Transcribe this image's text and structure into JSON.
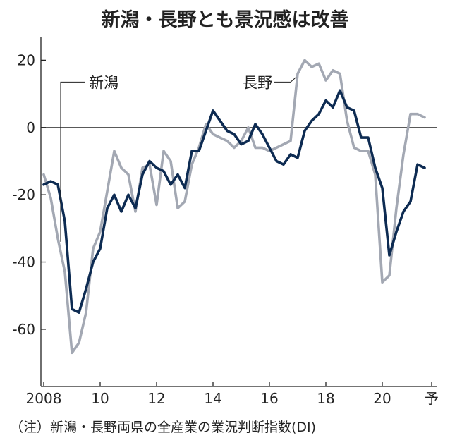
{
  "chart_data": {
    "type": "line",
    "title": "新潟・長野とも景況感は改善",
    "note": "（注）新潟・長野両県の全産業の業況判断指数(DI)",
    "xlabel": "",
    "ylabel": "",
    "x_ticks": [
      {
        "x": 2008,
        "label": "2008"
      },
      {
        "x": 2010,
        "label": "10"
      },
      {
        "x": 2012,
        "label": "12"
      },
      {
        "x": 2014,
        "label": "14"
      },
      {
        "x": 2016,
        "label": "16"
      },
      {
        "x": 2018,
        "label": "18"
      },
      {
        "x": 2020,
        "label": "20"
      },
      {
        "x": 2021.75,
        "label": "予"
      }
    ],
    "y_ticks": [
      {
        "y": 20,
        "label": "20"
      },
      {
        "y": 0,
        "label": "0"
      },
      {
        "y": -20,
        "label": "-20"
      },
      {
        "y": -40,
        "label": "-40"
      },
      {
        "y": -60,
        "label": "-60"
      }
    ],
    "xlim": [
      2007.9,
      2021.95
    ],
    "ylim": [
      -77,
      27
    ],
    "grid": false,
    "series": [
      {
        "name": "新潟",
        "color": "#0d2b52",
        "label_anchor": {
          "x": 2008.6,
          "y": 13.5
        },
        "label_pos": {
          "x": 2010.0,
          "y": 13.5
        },
        "x": [
          2008.0,
          2008.25,
          2008.5,
          2008.75,
          2009.0,
          2009.25,
          2009.5,
          2009.75,
          2010.0,
          2010.25,
          2010.5,
          2010.75,
          2011.0,
          2011.25,
          2011.5,
          2011.75,
          2012.0,
          2012.25,
          2012.5,
          2012.75,
          2013.0,
          2013.25,
          2013.5,
          2013.75,
          2014.0,
          2014.25,
          2014.5,
          2014.75,
          2015.0,
          2015.25,
          2015.5,
          2015.75,
          2016.0,
          2016.25,
          2016.5,
          2016.75,
          2017.0,
          2017.25,
          2017.5,
          2017.75,
          2018.0,
          2018.25,
          2018.5,
          2018.75,
          2019.0,
          2019.25,
          2019.5,
          2019.75,
          2020.0,
          2020.25,
          2020.5,
          2020.75,
          2021.0,
          2021.25,
          2021.5
        ],
        "y": [
          -17,
          -16,
          -17,
          -28,
          -54,
          -55,
          -48,
          -40,
          -36,
          -24,
          -20,
          -25,
          -20,
          -24,
          -14,
          -10,
          -12,
          -13,
          -17,
          -14,
          -18,
          -7,
          -7,
          -1,
          5,
          2,
          -1,
          -2,
          -5,
          -4,
          1,
          -2,
          -6,
          -10,
          -11,
          -8,
          -9,
          -1,
          2,
          4,
          8,
          6,
          11,
          6,
          5,
          -3,
          -3,
          -12,
          -18,
          -38,
          -31,
          -25,
          -22,
          -11,
          -12
        ]
      },
      {
        "name": "長野",
        "color": "#a3a8b3",
        "label_anchor": {
          "x": 2016.5,
          "y": 14
        },
        "label_pos": {
          "x": 2015.2,
          "y": 13.5
        },
        "x": [
          2008.0,
          2008.25,
          2008.5,
          2008.75,
          2009.0,
          2009.25,
          2009.5,
          2009.75,
          2010.0,
          2010.25,
          2010.5,
          2010.75,
          2011.0,
          2011.25,
          2011.5,
          2011.75,
          2012.0,
          2012.25,
          2012.5,
          2012.75,
          2013.0,
          2013.25,
          2013.5,
          2013.75,
          2014.0,
          2014.25,
          2014.5,
          2014.75,
          2015.0,
          2015.25,
          2015.5,
          2015.75,
          2016.0,
          2016.25,
          2016.5,
          2016.75,
          2017.0,
          2017.25,
          2017.5,
          2017.75,
          2018.0,
          2018.25,
          2018.5,
          2018.75,
          2019.0,
          2019.25,
          2019.5,
          2019.75,
          2020.0,
          2020.25,
          2020.5,
          2020.75,
          2021.0,
          2021.25,
          2021.5
        ],
        "y": [
          -14,
          -21,
          -33,
          -43,
          -67,
          -64,
          -55,
          -36,
          -31,
          -19,
          -7,
          -12,
          -14,
          -25,
          -12,
          -11,
          -23,
          -7,
          -10,
          -24,
          -22,
          -11,
          -6,
          1,
          -2,
          -3,
          -4,
          -6,
          -4,
          0,
          -6,
          -6,
          -7,
          -6,
          -5,
          -4,
          16,
          20,
          18,
          19,
          14,
          17,
          16,
          2,
          -6,
          -7,
          -7,
          -14,
          -46,
          -44,
          -24,
          -8,
          4,
          4,
          3
        ]
      }
    ]
  }
}
